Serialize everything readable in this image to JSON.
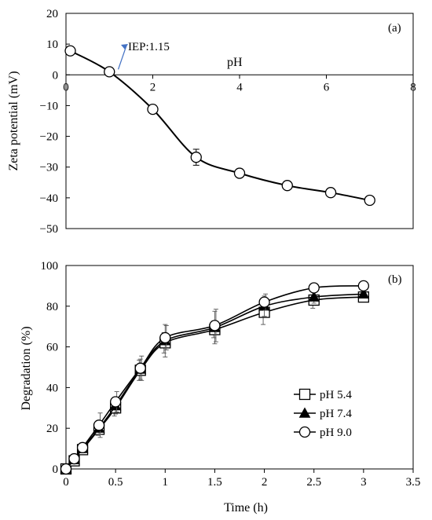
{
  "chart_data": [
    {
      "type": "scatter",
      "panel_label": "(a)",
      "xlabel": "pH",
      "ylabel": "Zeta potential (mV)",
      "xlim": [
        0,
        8
      ],
      "ylim": [
        -50,
        20
      ],
      "xticks": [
        0,
        2,
        4,
        6,
        8
      ],
      "yticks": [
        20,
        10,
        0,
        -10,
        -20,
        -30,
        -40,
        -50
      ],
      "ytick_labels": [
        "20",
        "10",
        "0",
        "−10",
        "−20",
        "−30",
        "−40",
        "−50"
      ],
      "annotation": "IEP:1.15",
      "marker": "open-circle",
      "line": "smooth",
      "x": [
        0.1,
        1.0,
        2.0,
        3.0,
        4.0,
        5.1,
        6.1,
        7.0
      ],
      "y": [
        7.8,
        1.0,
        -11.2,
        -26.8,
        -32.0,
        -36.0,
        -38.3,
        -40.8
      ],
      "error": [
        0,
        0,
        0,
        2.6,
        0,
        0,
        0,
        0
      ],
      "grid": false
    },
    {
      "type": "line",
      "panel_label": "(b)",
      "xlabel": "Time (h)",
      "ylabel": "Degradation (%)",
      "xlim": [
        0,
        3.5
      ],
      "ylim": [
        0,
        100
      ],
      "xticks": [
        0,
        0.5,
        1,
        1.5,
        2,
        2.5,
        3,
        3.5
      ],
      "yticks": [
        0,
        20,
        40,
        60,
        80,
        100
      ],
      "legend_position": "bottom-right",
      "x": [
        0,
        0.083,
        0.167,
        0.333,
        0.5,
        0.75,
        1.0,
        1.5,
        2.0,
        2.5,
        3.0
      ],
      "series": [
        {
          "name": "pH 5.4",
          "marker": "open-square",
          "values": [
            0,
            4,
            9.5,
            19.5,
            30,
            48.5,
            62,
            68.5,
            77,
            83,
            84.5
          ],
          "errors": [
            0,
            2,
            2,
            3,
            4,
            5,
            5,
            4,
            6,
            4,
            2
          ]
        },
        {
          "name": "pH 7.4",
          "marker": "filled-triangle",
          "values": [
            0,
            4.5,
            10,
            20,
            31,
            49,
            63,
            69.5,
            80,
            84.5,
            86
          ],
          "errors": [
            0,
            2,
            2,
            3,
            4,
            5,
            8,
            8,
            5,
            3,
            2
          ]
        },
        {
          "name": "pH 9.0",
          "marker": "open-circle",
          "values": [
            0,
            5,
            10.5,
            21.5,
            33,
            49.5,
            64.5,
            70.5,
            82,
            89,
            90
          ],
          "errors": [
            0,
            2,
            2,
            6,
            5,
            6,
            6,
            8,
            4,
            2,
            1
          ]
        }
      ],
      "grid": false
    }
  ]
}
